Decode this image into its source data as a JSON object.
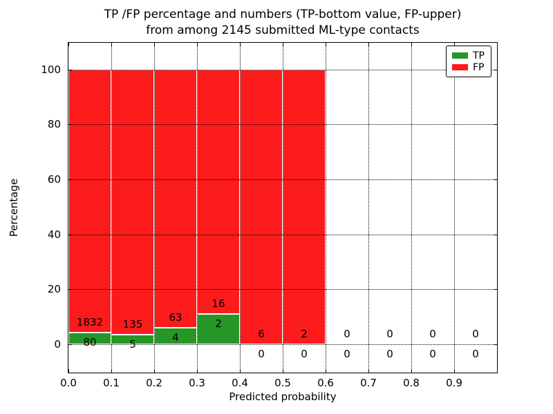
{
  "chart_data": {
    "type": "bar",
    "stacked": true,
    "title_line1": "TP /FP percentage and numbers (TP-bottom value, FP-upper)",
    "title_line2": "from among 2145 submitted ML-type contacts",
    "xlabel": "Predicted probability",
    "ylabel": "Percentage",
    "total_submitted_contacts": 2145,
    "bin_width": 0.1,
    "xlim": [
      0.0,
      1.0
    ],
    "ylim_percent": [
      -10.3,
      109.6
    ],
    "x_tick_labels": [
      "0.0",
      "0.1",
      "0.2",
      "0.3",
      "0.4",
      "0.5",
      "0.6",
      "0.7",
      "0.8",
      "0.9"
    ],
    "y_ticks": [
      0,
      20,
      40,
      60,
      80,
      100
    ],
    "y_tick_labels": [
      "0",
      "20",
      "40",
      "60",
      "80",
      "100"
    ],
    "series": [
      {
        "name": "TP",
        "color": "#269626",
        "stack_position": "bottom",
        "counts": [
          80,
          5,
          4,
          2,
          0,
          0,
          0,
          0,
          0,
          0
        ]
      },
      {
        "name": "FP",
        "color": "#fb1b1b",
        "stack_position": "top",
        "counts": [
          1832,
          135,
          63,
          16,
          6,
          2,
          0,
          0,
          0,
          0
        ]
      }
    ],
    "bar_unit": "percent of bin total; each non-empty bin stacks to 100%",
    "grid": {
      "style": "dotted",
      "color": "#000000"
    },
    "legend": {
      "location": "upper right",
      "entries": [
        "TP",
        "FP"
      ]
    }
  }
}
